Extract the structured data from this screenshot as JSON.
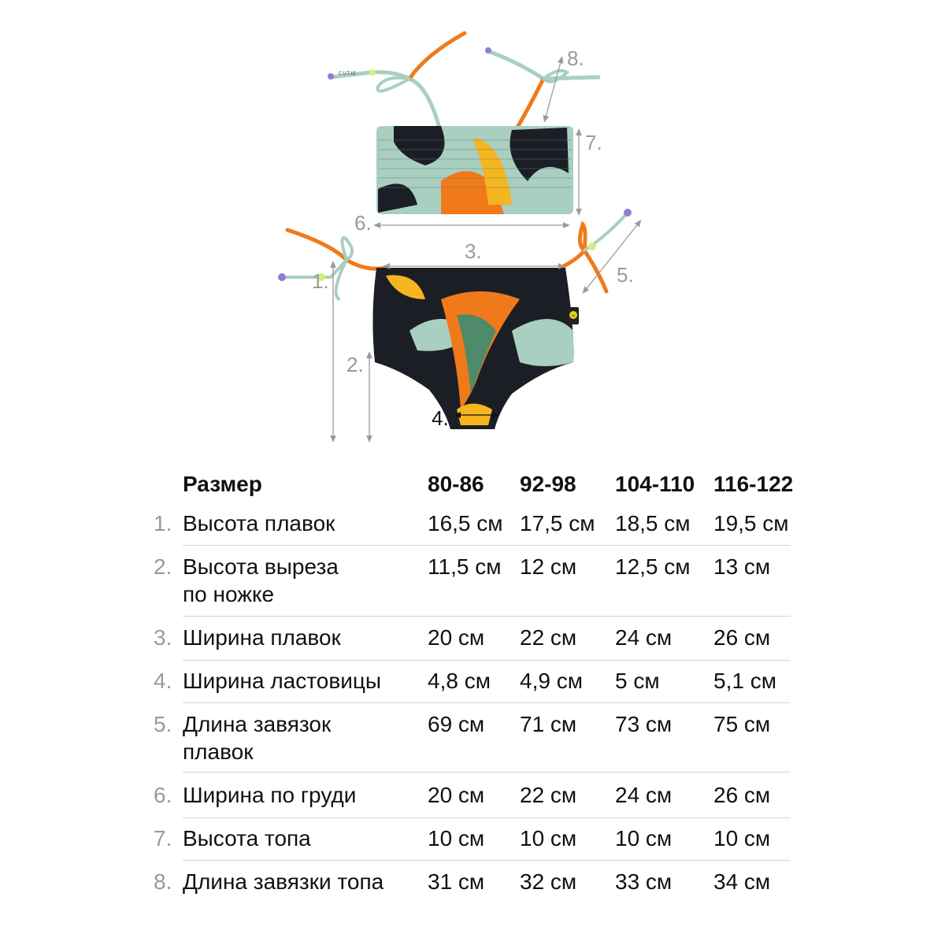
{
  "diagram": {
    "labels": [
      "1.",
      "2.",
      "3.",
      "4.",
      "5.",
      "6.",
      "7.",
      "8."
    ],
    "tag_text": "CUTIE",
    "brand_badge": "hb",
    "colors": {
      "fabric_dark": "#1c1e26",
      "fabric_mint": "#a9cfc0",
      "flame_orange": "#f07a1a",
      "flame_yellow": "#f5b51f",
      "arrow": "#9a9a9a"
    }
  },
  "table": {
    "header": {
      "label": "Размер",
      "sizes": [
        "80-86",
        "92-98",
        "104-110",
        "116-122"
      ]
    },
    "rows": [
      {
        "num": "1.",
        "label": [
          "Высота плавок"
        ],
        "values": [
          "16,5 см",
          "17,5 см",
          "18,5 см",
          "19,5 см"
        ]
      },
      {
        "num": "2.",
        "label": [
          "Высота выреза",
          "по ножке"
        ],
        "values": [
          "11,5 см",
          "12 см",
          "12,5 см",
          "13 см"
        ]
      },
      {
        "num": "3.",
        "label": [
          "Ширина плавок"
        ],
        "values": [
          "20 см",
          "22 см",
          "24 см",
          "26 см"
        ]
      },
      {
        "num": "4.",
        "label": [
          "Ширина ластовицы"
        ],
        "values": [
          "4,8 см",
          "4,9 см",
          "5 см",
          "5,1 см"
        ]
      },
      {
        "num": "5.",
        "label": [
          "Длина завязок",
          "плавок"
        ],
        "values": [
          "69 см",
          "71 см",
          "73 см",
          "75 см"
        ]
      },
      {
        "num": "6.",
        "label": [
          "Ширина по груди"
        ],
        "values": [
          "20 см",
          "22 см",
          "24 см",
          "26 см"
        ]
      },
      {
        "num": "7.",
        "label": [
          "Высота топа"
        ],
        "values": [
          "10 см",
          "10 см",
          "10 см",
          "10 см"
        ]
      },
      {
        "num": "8.",
        "label": [
          "Длина завязки топа"
        ],
        "values": [
          "31 см",
          "32 см",
          "33 см",
          "34 см"
        ]
      }
    ]
  }
}
